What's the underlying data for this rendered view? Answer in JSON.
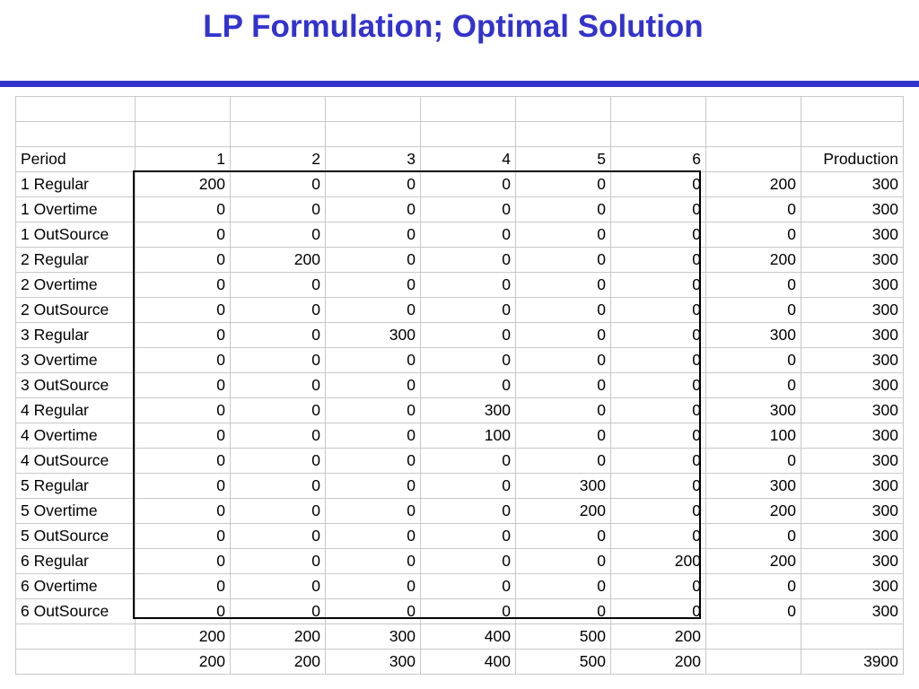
{
  "title": "LP Formulation; Optimal Solution",
  "header": {
    "label": "Period",
    "periods": [
      "1",
      "2",
      "3",
      "4",
      "5",
      "6"
    ],
    "blank": "",
    "production_label": "Production"
  },
  "rows": [
    {
      "label": "1 Regular",
      "values": [
        "200",
        "0",
        "0",
        "0",
        "0",
        "0"
      ],
      "total": "200",
      "production": "300"
    },
    {
      "label": "1 Overtime",
      "values": [
        "0",
        "0",
        "0",
        "0",
        "0",
        "0"
      ],
      "total": "0",
      "production": "300"
    },
    {
      "label": "1 OutSource",
      "values": [
        "0",
        "0",
        "0",
        "0",
        "0",
        "0"
      ],
      "total": "0",
      "production": "300"
    },
    {
      "label": "2 Regular",
      "values": [
        "0",
        "200",
        "0",
        "0",
        "0",
        "0"
      ],
      "total": "200",
      "production": "300"
    },
    {
      "label": "2 Overtime",
      "values": [
        "0",
        "0",
        "0",
        "0",
        "0",
        "0"
      ],
      "total": "0",
      "production": "300"
    },
    {
      "label": "2 OutSource",
      "values": [
        "0",
        "0",
        "0",
        "0",
        "0",
        "0"
      ],
      "total": "0",
      "production": "300"
    },
    {
      "label": "3 Regular",
      "values": [
        "0",
        "0",
        "300",
        "0",
        "0",
        "0"
      ],
      "total": "300",
      "production": "300"
    },
    {
      "label": "3 Overtime",
      "values": [
        "0",
        "0",
        "0",
        "0",
        "0",
        "0"
      ],
      "total": "0",
      "production": "300"
    },
    {
      "label": "3 OutSource",
      "values": [
        "0",
        "0",
        "0",
        "0",
        "0",
        "0"
      ],
      "total": "0",
      "production": "300"
    },
    {
      "label": "4 Regular",
      "values": [
        "0",
        "0",
        "0",
        "300",
        "0",
        "0"
      ],
      "total": "300",
      "production": "300"
    },
    {
      "label": "4 Overtime",
      "values": [
        "0",
        "0",
        "0",
        "100",
        "0",
        "0"
      ],
      "total": "100",
      "production": "300"
    },
    {
      "label": "4 OutSource",
      "values": [
        "0",
        "0",
        "0",
        "0",
        "0",
        "0"
      ],
      "total": "0",
      "production": "300"
    },
    {
      "label": "5 Regular",
      "values": [
        "0",
        "0",
        "0",
        "0",
        "300",
        "0"
      ],
      "total": "300",
      "production": "300"
    },
    {
      "label": "5 Overtime",
      "values": [
        "0",
        "0",
        "0",
        "0",
        "200",
        "0"
      ],
      "total": "200",
      "production": "300"
    },
    {
      "label": "5 OutSource",
      "values": [
        "0",
        "0",
        "0",
        "0",
        "0",
        "0"
      ],
      "total": "0",
      "production": "300"
    },
    {
      "label": "6 Regular",
      "values": [
        "0",
        "0",
        "0",
        "0",
        "0",
        "200"
      ],
      "total": "200",
      "production": "300"
    },
    {
      "label": "6 Overtime",
      "values": [
        "0",
        "0",
        "0",
        "0",
        "0",
        "0"
      ],
      "total": "0",
      "production": "300"
    },
    {
      "label": "6 OutSource",
      "values": [
        "0",
        "0",
        "0",
        "0",
        "0",
        "0"
      ],
      "total": "0",
      "production": "300"
    }
  ],
  "sum_row": {
    "label": "",
    "values": [
      "200",
      "200",
      "300",
      "400",
      "500",
      "200"
    ],
    "total": "",
    "production": ""
  },
  "demand_row": {
    "label": "",
    "values": [
      "200",
      "200",
      "300",
      "400",
      "500",
      "200"
    ],
    "total": "",
    "production": "3900"
  }
}
